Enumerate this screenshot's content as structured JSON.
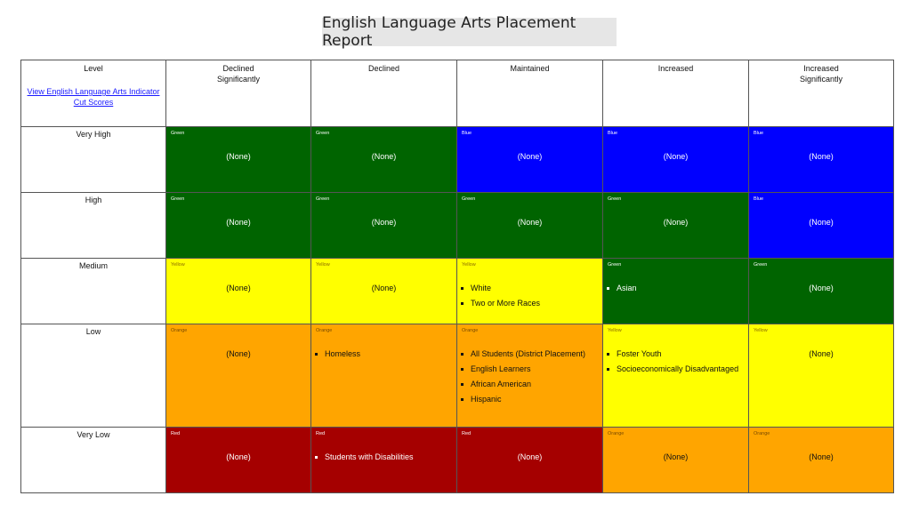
{
  "title": "English Language Arts Placement Report",
  "header": {
    "level": "Level",
    "link_text": "View English Language Arts Indicator Cut Scores",
    "columns": [
      {
        "line1": "Declined",
        "line2": "Significantly"
      },
      {
        "line1": "Declined",
        "line2": ""
      },
      {
        "line1": "Maintained",
        "line2": ""
      },
      {
        "line1": "Increased",
        "line2": ""
      },
      {
        "line1": "Increased",
        "line2": "Significantly"
      }
    ]
  },
  "colors": {
    "Green": "#006400",
    "Blue": "#0000ff",
    "Yellow": "#ffff00",
    "Orange": "#ffa500",
    "Red": "#a50000"
  },
  "rows": [
    {
      "level": "Very High",
      "cells": [
        {
          "color": "Green",
          "items": [
            "(None)"
          ]
        },
        {
          "color": "Green",
          "items": [
            "(None)"
          ]
        },
        {
          "color": "Blue",
          "items": [
            "(None)"
          ]
        },
        {
          "color": "Blue",
          "items": [
            "(None)"
          ]
        },
        {
          "color": "Blue",
          "items": [
            "(None)"
          ]
        }
      ]
    },
    {
      "level": "High",
      "cells": [
        {
          "color": "Green",
          "items": [
            "(None)"
          ]
        },
        {
          "color": "Green",
          "items": [
            "(None)"
          ]
        },
        {
          "color": "Green",
          "items": [
            "(None)"
          ]
        },
        {
          "color": "Green",
          "items": [
            "(None)"
          ]
        },
        {
          "color": "Blue",
          "items": [
            "(None)"
          ]
        }
      ]
    },
    {
      "level": "Medium",
      "cells": [
        {
          "color": "Yellow",
          "items": [
            "(None)"
          ]
        },
        {
          "color": "Yellow",
          "items": [
            "(None)"
          ]
        },
        {
          "color": "Yellow",
          "bullets": [
            "White",
            "Two or More Races"
          ]
        },
        {
          "color": "Green",
          "bullets": [
            "Asian"
          ]
        },
        {
          "color": "Green",
          "items": [
            "(None)"
          ]
        }
      ]
    },
    {
      "level": "Low",
      "cells": [
        {
          "color": "Orange",
          "items": [
            "(None)"
          ]
        },
        {
          "color": "Orange",
          "bullets": [
            "Homeless"
          ]
        },
        {
          "color": "Orange",
          "bullets": [
            "All Students (District Placement)",
            "English Learners",
            "African American",
            "Hispanic"
          ]
        },
        {
          "color": "Yellow",
          "bullets": [
            "Foster Youth",
            "Socioeconomically Disadvantaged"
          ]
        },
        {
          "color": "Yellow",
          "items": [
            "(None)"
          ]
        }
      ]
    },
    {
      "level": "Very Low",
      "cells": [
        {
          "color": "Red",
          "items": [
            "(None)"
          ]
        },
        {
          "color": "Red",
          "bullets": [
            "Students with Disabilities"
          ]
        },
        {
          "color": "Red",
          "items": [
            "(None)"
          ]
        },
        {
          "color": "Orange",
          "items": [
            "(None)"
          ]
        },
        {
          "color": "Orange",
          "items": [
            "(None)"
          ]
        }
      ]
    }
  ]
}
